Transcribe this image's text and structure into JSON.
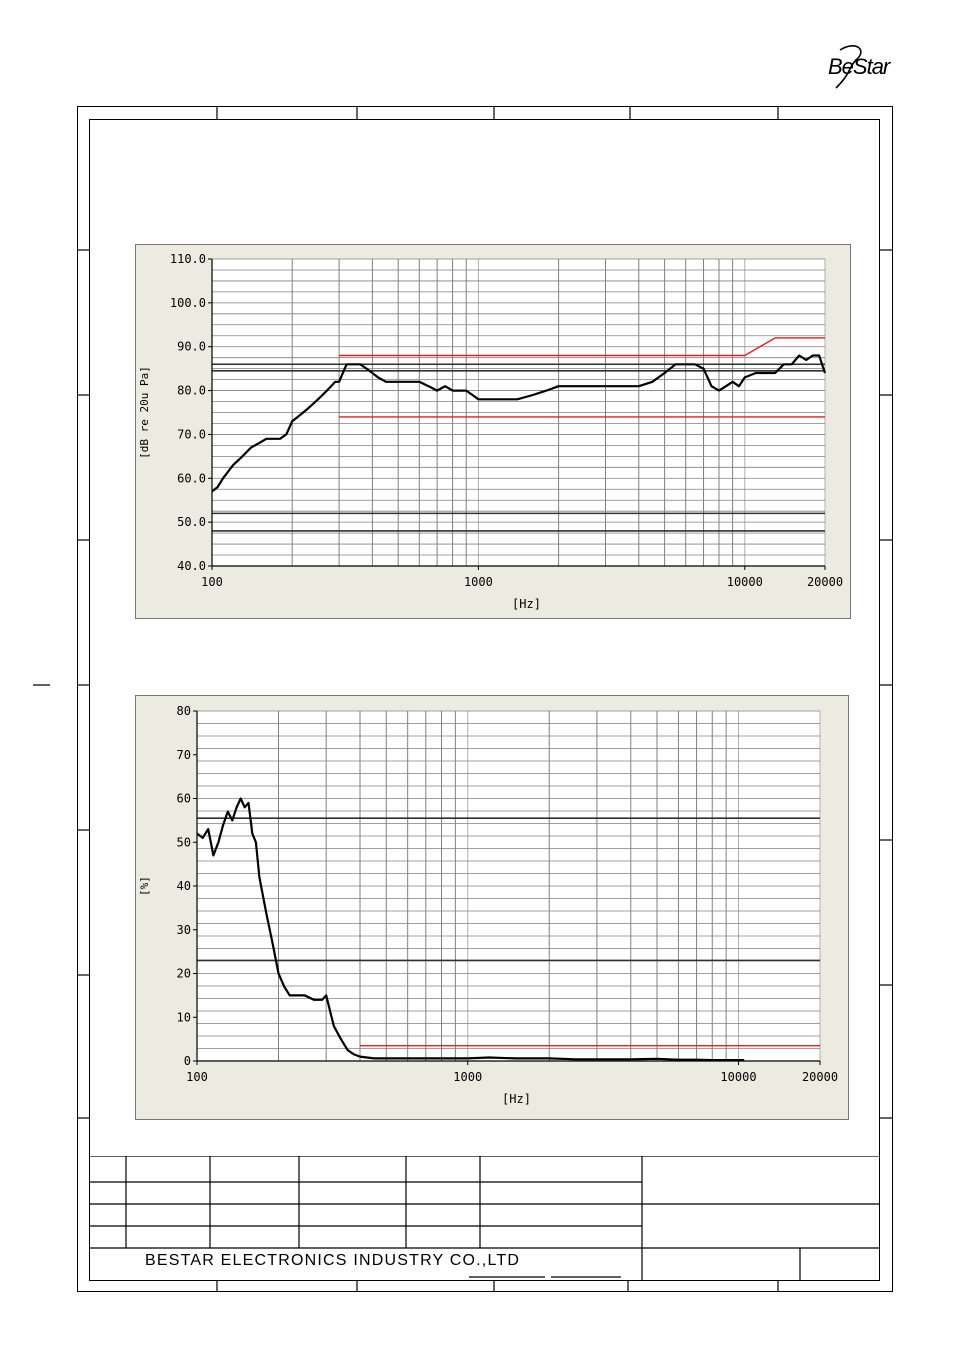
{
  "logo": {
    "text": "BeStar"
  },
  "footer": {
    "company": "BESTAR  ELECTRONICS  INDUSTRY  CO.,LTD"
  },
  "colors": {
    "panel_bg": "#ecebe1",
    "plot_bg": "#ffffff",
    "curve": "#000000",
    "limit": "#e0201a",
    "grid": "#808080"
  },
  "chart_data": [
    {
      "type": "line",
      "title": "",
      "xlabel": "[Hz]",
      "ylabel": "[dB re 20u Pa]",
      "xscale": "log",
      "xlim": [
        100,
        20000
      ],
      "ylim": [
        40,
        110
      ],
      "xticks": [
        100,
        1000,
        10000,
        20000
      ],
      "yticks": [
        "40.0",
        "50.0",
        "60.0",
        "70.0",
        "80.0",
        "90.0",
        "100.0",
        "110.0"
      ],
      "grid": true,
      "series": [
        {
          "role": "measured",
          "x": [
            100,
            105,
            110,
            120,
            130,
            140,
            150,
            160,
            170,
            180,
            190,
            200,
            210,
            220,
            230,
            240,
            250,
            260,
            270,
            280,
            290,
            300,
            320,
            340,
            360,
            380,
            400,
            420,
            450,
            480,
            500,
            550,
            600,
            650,
            700,
            750,
            800,
            850,
            900,
            950,
            1000,
            1100,
            1200,
            1400,
            1600,
            1800,
            2000,
            2200,
            2500,
            2800,
            3000,
            3300,
            3600,
            4000,
            4500,
            5000,
            5500,
            6000,
            6500,
            7000,
            7500,
            8000,
            8500,
            9000,
            9500,
            10000,
            11000,
            12000,
            13000,
            14000,
            15000,
            16000,
            17000,
            18000,
            19000,
            20000
          ],
          "y": [
            57,
            58,
            60,
            63,
            65,
            67,
            68,
            69,
            69,
            69,
            70,
            73,
            74,
            75,
            76,
            77,
            78,
            79,
            80,
            81,
            82,
            82,
            86,
            86,
            86,
            85,
            84,
            83,
            82,
            82,
            82,
            82,
            82,
            81,
            80,
            81,
            80,
            80,
            80,
            79,
            78,
            78,
            78,
            78,
            79,
            80,
            81,
            81,
            81,
            81,
            81,
            81,
            81,
            81,
            82,
            84,
            86,
            86,
            86,
            85,
            81,
            80,
            81,
            82,
            81,
            83,
            84,
            84,
            84,
            86,
            86,
            88,
            87,
            88,
            88,
            84
          ]
        },
        {
          "role": "upper-limit",
          "x": [
            300,
            10000,
            13000,
            20000
          ],
          "y": [
            88,
            88,
            92,
            92
          ]
        },
        {
          "role": "lower-limit",
          "x": [
            300,
            20000
          ],
          "y": [
            74,
            74
          ]
        }
      ]
    },
    {
      "type": "line",
      "title": "",
      "xlabel": "[Hz]",
      "ylabel": "[%]",
      "xscale": "log",
      "xlim": [
        100,
        20000
      ],
      "ylim": [
        0,
        80
      ],
      "xticks": [
        100,
        1000,
        10000,
        20000
      ],
      "yticks": [
        "0",
        "10",
        "20",
        "30",
        "40",
        "50",
        "60",
        "70",
        "80"
      ],
      "grid": true,
      "series": [
        {
          "role": "measured",
          "x": [
            100,
            105,
            110,
            115,
            120,
            125,
            130,
            135,
            140,
            145,
            150,
            155,
            160,
            165,
            170,
            180,
            190,
            200,
            210,
            220,
            230,
            250,
            270,
            290,
            300,
            320,
            340,
            360,
            380,
            400,
            450,
            500,
            600,
            800,
            1000,
            1200,
            1500,
            2000,
            2500,
            3000,
            4000,
            5000,
            6000,
            7000,
            8000,
            9000,
            10000,
            10500
          ],
          "y": [
            52,
            51,
            53,
            47,
            50,
            54,
            57,
            55,
            58,
            60,
            58,
            59,
            52,
            50,
            42,
            34,
            27,
            20,
            17,
            15,
            15,
            15,
            14,
            14,
            15,
            8,
            5,
            2.5,
            1.5,
            1,
            0.6,
            0.6,
            0.6,
            0.6,
            0.6,
            0.8,
            0.6,
            0.6,
            0.4,
            0.4,
            0.4,
            0.5,
            0.3,
            0.3,
            0.2,
            0.2,
            0.2,
            0.2
          ]
        },
        {
          "role": "limit",
          "x": [
            400,
            20000
          ],
          "y": [
            3.5,
            3.5
          ]
        }
      ]
    }
  ]
}
